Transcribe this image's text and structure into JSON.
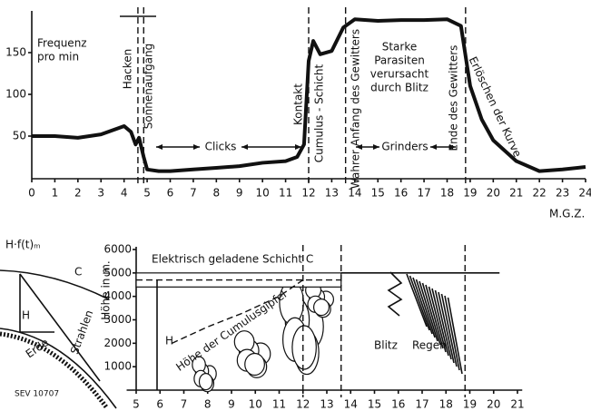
{
  "chart_data": [
    {
      "type": "line",
      "y_label_lines": [
        "Frequenz",
        "pro min"
      ],
      "x_label": "M.G.Z.",
      "xlim": [
        0,
        24
      ],
      "ylim": [
        0,
        200
      ],
      "xticks": [
        0,
        1,
        2,
        3,
        4,
        5,
        6,
        7,
        8,
        9,
        10,
        11,
        12,
        13,
        14,
        15,
        16,
        17,
        18,
        19,
        20,
        21,
        22,
        23,
        24
      ],
      "yticks": [
        50,
        100,
        150
      ],
      "series": [
        {
          "color": "#111111",
          "x": [
            0,
            1,
            2,
            3,
            4,
            4.3,
            4.5,
            4.65,
            4.85,
            5,
            5.5,
            6,
            7,
            8,
            9,
            10,
            11,
            11.5,
            11.8,
            12,
            12.2,
            12.5,
            13,
            13.5,
            14,
            15,
            16,
            17,
            18,
            18.6,
            19,
            19.5,
            20,
            21,
            22,
            23,
            24
          ],
          "values": [
            50,
            50,
            48,
            52,
            62,
            55,
            40,
            48,
            25,
            10,
            8,
            8,
            10,
            12,
            14,
            18,
            20,
            25,
            40,
            140,
            164,
            148,
            152,
            180,
            190,
            188,
            189,
            189,
            190,
            182,
            110,
            70,
            45,
            20,
            8,
            10,
            13
          ]
        }
      ],
      "vlines": [
        4.6,
        4.85,
        12,
        13.6,
        18.8
      ],
      "annotations": {
        "hacken": "Hacken",
        "sonne": "Sonnenaufgang",
        "clicks": "Clicks",
        "kontakt": "Kontakt",
        "cumulus": "Cumulus - Schicht",
        "anfang": "Wahrer Anfang des Gewitters",
        "parasiten": [
          "Starke",
          "Parasiten",
          "verursacht",
          "durch Blitz"
        ],
        "grinders": "Grinders",
        "ende": "Ende des Gewitters",
        "erloeschen": "Erlöschen der Kurve"
      }
    },
    {
      "type": "profile",
      "y_label": "Höhe in m.",
      "xlim": [
        4.6,
        21.2
      ],
      "ylim": [
        0,
        6000
      ],
      "xticks": [
        5,
        6,
        7,
        8,
        9,
        10,
        11,
        12,
        13,
        14,
        15,
        16,
        17,
        18,
        19,
        20,
        21
      ],
      "yticks": [
        1000,
        2000,
        3000,
        4000,
        5000,
        6000
      ],
      "vlines": [
        12,
        13.6,
        18.8
      ],
      "layer": {
        "label": "Elektrisch geladene Schicht C",
        "top": 5000,
        "bottom": 4400
      },
      "cumulus_tops": {
        "name": "Höhe der Cumulusgipfel",
        "x": [
          6.5,
          8,
          9.5,
          11,
          12
        ],
        "values": [
          2000,
          2700,
          3300,
          4000,
          4700
        ]
      },
      "annotations": {
        "h": "H",
        "blitz": "Blitz",
        "regen": "Regen"
      }
    }
  ],
  "diagram": {
    "title": "H·f(t)ₘ",
    "c": "C",
    "h": "H",
    "erde": "Erde",
    "strahlen": "Strahlen",
    "code": "SEV 10707"
  }
}
